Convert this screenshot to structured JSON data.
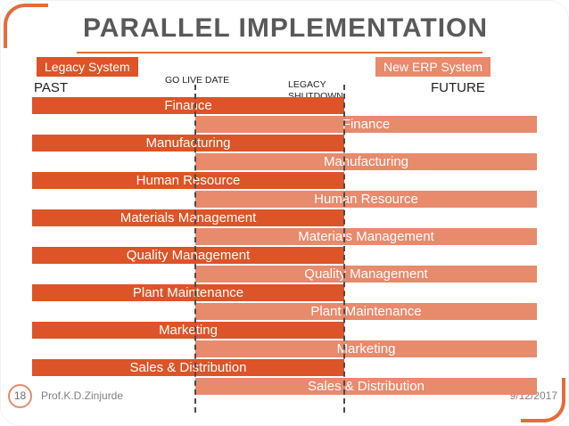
{
  "slide": {
    "title": "PARALLEL IMPLEMENTATION",
    "page_number": "18",
    "author": "Prof.K.D.Zinjurde",
    "date": "9/12/2017"
  },
  "legend": {
    "legacy_label": "Legacy System",
    "erp_label": "New ERP System"
  },
  "timeline": {
    "past": "PAST",
    "go_live": "GO LIVE DATE",
    "shutdown": "LEGACY SHUTDOWN",
    "future": "FUTURE"
  },
  "modules": [
    "Finance",
    "Manufacturing",
    "Human Resource",
    "Materials Management",
    "Quality Management",
    "Plant Maintenance",
    "Marketing",
    "Sales & Distribution"
  ],
  "colors": {
    "legacy_bar": "#DC5427",
    "erp_bar": "#E88A6C",
    "accent": "#E36C3A",
    "title_text": "#595959"
  }
}
